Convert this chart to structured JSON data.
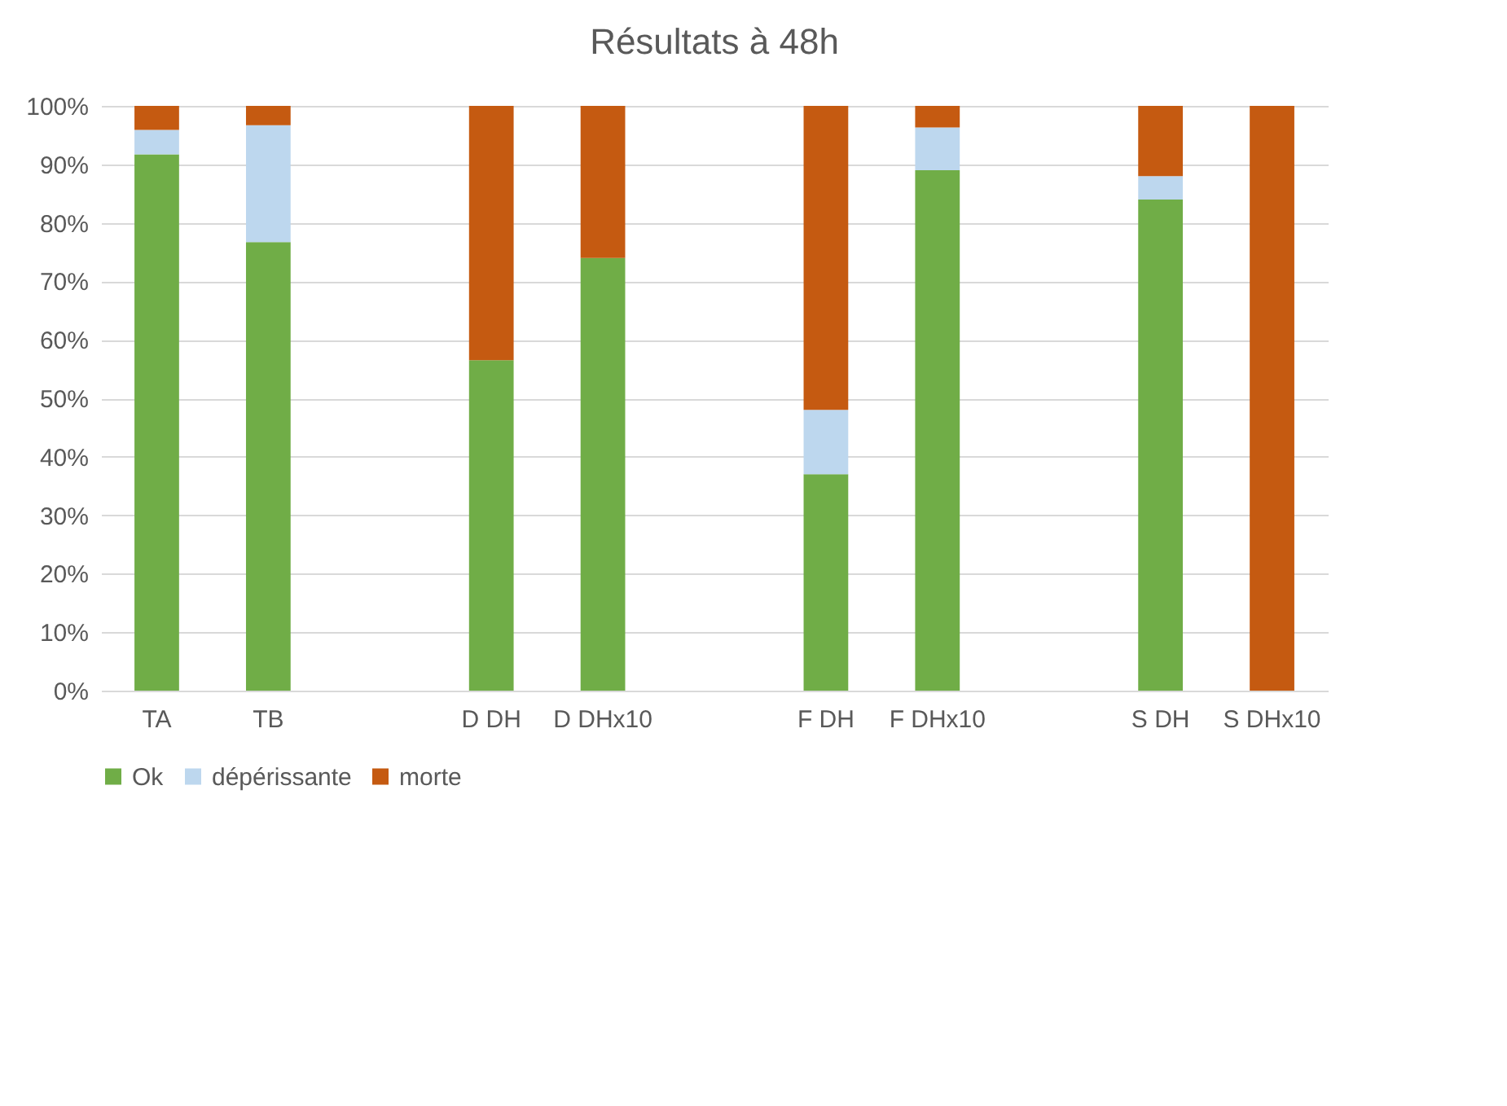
{
  "chart_data": {
    "type": "bar",
    "title": "Résultats à 48h",
    "stacked": true,
    "categories": [
      "TA",
      "TB",
      null,
      "D DH",
      "D DHx10",
      null,
      "F DH",
      "F DHx10",
      null,
      "S DH",
      "S DHx10"
    ],
    "series": [
      {
        "name": "Ok",
        "color": "#70ad47",
        "values": [
          91.7,
          76.7,
          null,
          56.5,
          74,
          null,
          37,
          89,
          null,
          84,
          0
        ]
      },
      {
        "name": "dépérissante",
        "color": "#bdd7ee",
        "values": [
          4.2,
          20,
          null,
          0,
          0,
          null,
          11,
          7.3,
          null,
          4,
          0
        ]
      },
      {
        "name": "morte",
        "color": "#c55a11",
        "values": [
          4.1,
          3.3,
          null,
          43.5,
          26,
          null,
          52,
          3.7,
          null,
          12,
          100
        ]
      }
    ],
    "ylim": [
      0,
      100
    ],
    "yticks": [
      {
        "value": 0,
        "label": "0%"
      },
      {
        "value": 10,
        "label": "10%"
      },
      {
        "value": 20,
        "label": "20%"
      },
      {
        "value": 30,
        "label": "30%"
      },
      {
        "value": 40,
        "label": "40%"
      },
      {
        "value": 50,
        "label": "50%"
      },
      {
        "value": 60,
        "label": "60%"
      },
      {
        "value": 70,
        "label": "70%"
      },
      {
        "value": 80,
        "label": "80%"
      },
      {
        "value": 90,
        "label": "90%"
      },
      {
        "value": 100,
        "label": "100%"
      }
    ],
    "grid": "y",
    "legend": "bottom"
  }
}
